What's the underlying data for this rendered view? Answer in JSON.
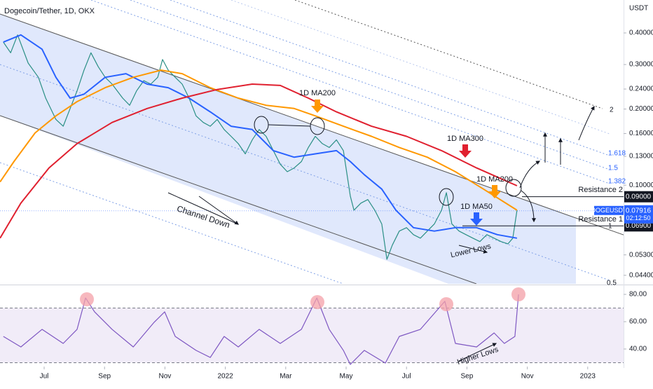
{
  "chart_data": [
    {
      "type": "line",
      "title": "Dogecoin/Tether, 1D, OKX",
      "y_unit": "USDT",
      "log_scale": true,
      "xlim": [
        -1.462,
        19.188
      ],
      "xticks": [
        {
          "value": 0,
          "label": "Jul"
        },
        {
          "value": 2,
          "label": "Sep"
        },
        {
          "value": 4,
          "label": "Nov"
        },
        {
          "value": 6,
          "label": "2022"
        },
        {
          "value": 8,
          "label": "Mar"
        },
        {
          "value": 10,
          "label": "May"
        },
        {
          "value": 12,
          "label": "Jul"
        },
        {
          "value": 14,
          "label": "Sep"
        },
        {
          "value": 16,
          "label": "Nov"
        },
        {
          "value": 18,
          "label": "2023"
        }
      ],
      "ylim": [
        0.0407,
        0.54
      ],
      "yticks": [
        {
          "value": 0.4,
          "label": "0.40000"
        },
        {
          "value": 0.3,
          "label": "0.30000"
        },
        {
          "value": 0.24,
          "label": "0.24000"
        },
        {
          "value": 0.2,
          "label": "0.20000"
        },
        {
          "value": 0.16,
          "label": "0.16000"
        },
        {
          "value": 0.13,
          "label": "0.13000"
        },
        {
          "value": 0.1,
          "label": "0.10000"
        },
        {
          "value": 0.053,
          "label": "0.05300"
        },
        {
          "value": 0.044,
          "label": "0.04400"
        }
      ],
      "series": [
        {
          "color": "#2a8f85",
          "x": [
            -1.35,
            -1.11,
            -0.88,
            -0.53,
            -0.19,
            0.05,
            0.39,
            0.63,
            0.86,
            1.09,
            1.32,
            1.55,
            1.79,
            2.02,
            2.25,
            2.6,
            2.83,
            3.06,
            3.3,
            3.53,
            3.76,
            3.92,
            4.11,
            4.34,
            4.57,
            4.8,
            5.03,
            5.27,
            5.5,
            5.73,
            5.96,
            6.19,
            6.43,
            6.66,
            6.89,
            7.12,
            7.35,
            7.59,
            7.82,
            8.05,
            8.28,
            8.52,
            8.75,
            8.98,
            9.21,
            9.44,
            9.68,
            9.91,
            10.14,
            10.26,
            10.49,
            10.72,
            10.95,
            11.18,
            11.35,
            11.53,
            11.76,
            12.0,
            12.23,
            12.46,
            12.69,
            12.92,
            13.16,
            13.32,
            13.5,
            13.74,
            13.97,
            14.2,
            14.43,
            14.66,
            14.9,
            15.13,
            15.36,
            15.52,
            15.66
          ],
          "values": [
            0.368,
            0.334,
            0.393,
            0.304,
            0.267,
            0.221,
            0.182,
            0.171,
            0.201,
            0.236,
            0.285,
            0.334,
            0.294,
            0.267,
            0.251,
            0.221,
            0.207,
            0.236,
            0.259,
            0.251,
            0.267,
            0.314,
            0.285,
            0.267,
            0.251,
            0.221,
            0.188,
            0.177,
            0.171,
            0.182,
            0.166,
            0.156,
            0.146,
            0.133,
            0.151,
            0.166,
            0.156,
            0.137,
            0.121,
            0.113,
            0.117,
            0.124,
            0.141,
            0.156,
            0.146,
            0.141,
            0.151,
            0.137,
            0.0905,
            0.0796,
            0.0849,
            0.0877,
            0.0796,
            0.0702,
            0.0509,
            0.0579,
            0.0658,
            0.0679,
            0.0637,
            0.0617,
            0.0658,
            0.0702,
            0.0796,
            0.0934,
            0.0702,
            0.0658,
            0.0637,
            0.0617,
            0.0598,
            0.0637,
            0.0617,
            0.0598,
            0.0586,
            0.0617,
            0.0796
          ]
        },
        {
          "color": "#2962ff",
          "x": [
            -1.35,
            -0.77,
            -0.07,
            0.39,
            0.86,
            1.32,
            2.02,
            2.71,
            3.41,
            4.11,
            4.8,
            5.5,
            6.19,
            6.89,
            7.59,
            8.28,
            8.98,
            9.68,
            10.14,
            10.6,
            11.18,
            11.65,
            12.23,
            12.92,
            13.62,
            14.32,
            15.01,
            15.66
          ],
          "values": [
            0.368,
            0.393,
            0.345,
            0.267,
            0.221,
            0.229,
            0.267,
            0.276,
            0.251,
            0.243,
            0.221,
            0.195,
            0.171,
            0.166,
            0.137,
            0.129,
            0.133,
            0.137,
            0.124,
            0.11,
            0.0965,
            0.0796,
            0.0679,
            0.0658,
            0.0679,
            0.0679,
            0.0637,
            0.0617
          ]
        },
        {
          "color": "#ff9800",
          "x": [
            -1.46,
            -1.0,
            -0.3,
            0.39,
            1.09,
            2.02,
            2.95,
            3.87,
            4.57,
            5.5,
            6.43,
            7.35,
            8.28,
            8.98,
            9.91,
            10.84,
            11.76,
            12.69,
            13.62,
            14.55,
            15.66
          ],
          "values": [
            0.103,
            0.124,
            0.161,
            0.188,
            0.214,
            0.243,
            0.267,
            0.285,
            0.276,
            0.243,
            0.221,
            0.207,
            0.201,
            0.188,
            0.171,
            0.156,
            0.141,
            0.129,
            0.113,
            0.0965,
            0.0796
          ]
        },
        {
          "color": "#e0202f",
          "x": [
            -1.46,
            -0.77,
            0.16,
            1.09,
            2.25,
            3.41,
            4.57,
            5.73,
            6.89,
            7.82,
            8.75,
            9.68,
            10.84,
            12.0,
            13.16,
            14.32,
            15.66
          ],
          "values": [
            0.0617,
            0.0849,
            0.117,
            0.146,
            0.177,
            0.201,
            0.221,
            0.239,
            0.251,
            0.248,
            0.221,
            0.195,
            0.171,
            0.156,
            0.137,
            0.117,
            0.0995
          ]
        }
      ],
      "levels": [
        {
          "value": 0.09,
          "label": "0.09000"
        },
        {
          "value": 0.069,
          "label": "0.06900"
        }
      ],
      "last_price": {
        "symbol": "DOGEUSDT",
        "value": 0.07916,
        "label": "0.07916",
        "countdown": "02:12:50"
      },
      "annotations": [
        "Channel Down",
        "1D MA200",
        "1D MA300",
        "1D MA200",
        "1D MA50",
        "Lower Lows",
        "Resistance 2",
        "Resistance 1",
        "2",
        "1.618",
        "1.5",
        "1.382",
        "1",
        "0.5"
      ]
    },
    {
      "type": "line",
      "ylim": [
        27.15,
        86.15
      ],
      "yticks": [
        {
          "value": 80,
          "label": "80.00"
        },
        {
          "value": 60,
          "label": "60.00"
        },
        {
          "value": 40,
          "label": "40.00"
        }
      ],
      "bands": [
        30,
        70
      ],
      "series": [
        {
          "color": "#7e57c2",
          "x": [
            -1.35,
            -0.77,
            -0.07,
            0.63,
            1.09,
            1.37,
            1.67,
            2.25,
            2.95,
            3.64,
            3.99,
            4.34,
            5.03,
            5.5,
            5.96,
            6.43,
            7.12,
            7.82,
            8.52,
            9.03,
            9.44,
            9.91,
            10.14,
            10.6,
            11.3,
            11.76,
            12.46,
            13.27,
            13.62,
            14.32,
            14.9,
            15.24,
            15.59,
            15.71
          ],
          "values": [
            49.2,
            41.5,
            54.4,
            44.1,
            54.4,
            77.4,
            67.2,
            54.4,
            41.5,
            59.5,
            67.2,
            49.2,
            39.0,
            33.8,
            49.2,
            41.5,
            54.4,
            44.1,
            54.4,
            77.4,
            54.4,
            39.0,
            28.7,
            39.0,
            29.7,
            49.2,
            54.4,
            74.9,
            44.1,
            41.5,
            51.8,
            44.1,
            49.2,
            80
          ]
        }
      ],
      "annotations": [
        "Higher Lows"
      ]
    }
  ]
}
